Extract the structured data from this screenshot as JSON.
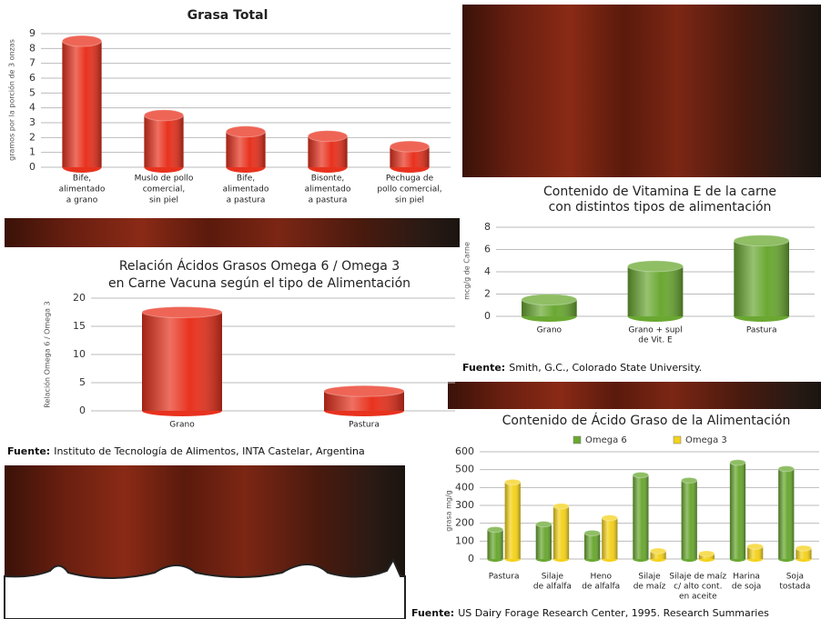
{
  "chart_data": [
    {
      "type": "bar",
      "title": "Grasa Total",
      "y_label": "gramos por la porción de 3 onzas",
      "categories": [
        [
          "Bife,",
          "alimentado",
          "a grano"
        ],
        [
          "Muslo de pollo",
          "comercial,",
          "sin piel"
        ],
        [
          "Bife,",
          "alimentado",
          "a pastura"
        ],
        [
          "Bisonte,",
          "alimentado",
          "a pastura"
        ],
        [
          "Pechuga de",
          "pollo comercial,",
          "sin piel"
        ]
      ],
      "values": [
        8.5,
        3.5,
        2.4,
        2.1,
        1.4
      ],
      "color": "#e8321e",
      "ylim": [
        0,
        9
      ],
      "yticks": [
        0,
        1,
        2,
        3,
        4,
        5,
        6,
        7,
        8,
        9
      ],
      "grid": true
    },
    {
      "type": "bar",
      "title": [
        "Relación Ácidos Grasos Omega 6 / Omega 3",
        "en Carne Vacuna según el tipo de Alimentación"
      ],
      "y_label": "Relación Omega 6 / Omega 3",
      "categories": [
        "Grano",
        "Pastura"
      ],
      "values": [
        17.5,
        3.5
      ],
      "color": "#e8321e",
      "ylim": [
        0,
        20
      ],
      "yticks": [
        0,
        5,
        10,
        15,
        20
      ],
      "grid": true,
      "source": {
        "label": "Fuente:",
        "text": "Instituto de Tecnología de Alimentos, INTA Castelar, Argentina"
      }
    },
    {
      "type": "bar",
      "title": [
        "Contenido de Vitamina E de la carne",
        "con distintos tipos de alimentación"
      ],
      "y_label": "mcg/g de Carne",
      "categories": [
        "Grano",
        [
          "Grano + supl",
          "de Vit. E"
        ],
        "Pastura"
      ],
      "values": [
        1.5,
        4.5,
        6.8
      ],
      "color": "#6aa832",
      "ylim": [
        0,
        8
      ],
      "yticks": [
        0,
        2,
        4,
        6,
        8
      ],
      "grid": true,
      "source": {
        "label": "Fuente:",
        "text": "Smith, G.C., Colorado State University."
      }
    },
    {
      "type": "bar",
      "title": "Contenido de Ácido Graso de la Alimentación",
      "y_label": "grasa mg/g",
      "categories": [
        "Pastura",
        [
          "Silaje",
          "de alfalfa"
        ],
        [
          "Heno",
          "de alfalfa"
        ],
        [
          "Silaje",
          "de maíz"
        ],
        [
          "Silaje de maíz",
          "c/ alto cont.",
          "en aceite"
        ],
        [
          "Harina",
          "de soja"
        ],
        [
          "Soja",
          "tostada"
        ]
      ],
      "series": [
        {
          "name": "Omega 6",
          "color": "#6aa832",
          "values": [
            165,
            195,
            145,
            470,
            440,
            540,
            505
          ]
        },
        {
          "name": "Omega 3",
          "color": "#f4d21c",
          "values": [
            430,
            295,
            230,
            45,
            30,
            70,
            60
          ]
        }
      ],
      "ylim": [
        0,
        600
      ],
      "yticks": [
        0,
        100,
        200,
        300,
        400,
        500,
        600
      ],
      "grid": true,
      "source": {
        "label": "Fuente:",
        "text": "US Dairy Forage Research Center, 1995. Research Summaries"
      }
    }
  ]
}
